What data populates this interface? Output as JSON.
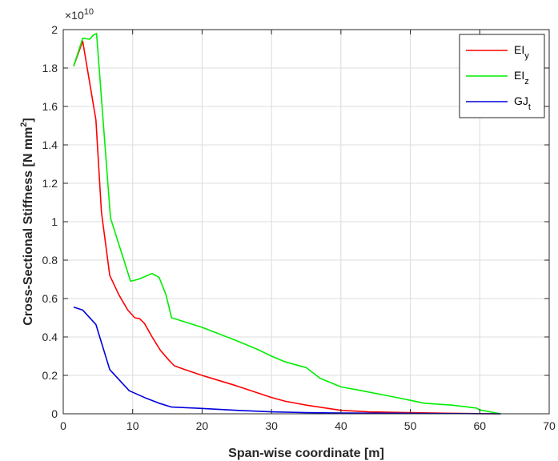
{
  "chart_data": {
    "type": "line",
    "xlabel": "Span-wise coordinate [m]",
    "ylabel_base": "Cross-Sectional Stiffness [N mm",
    "ylabel_sup": "2",
    "ylabel_end": "]",
    "exponent_base": "×10",
    "exponent_power": "10",
    "xlim": [
      0,
      70
    ],
    "ylim": [
      0,
      2
    ],
    "xticks": [
      0,
      10,
      20,
      30,
      40,
      50,
      60,
      70
    ],
    "yticks": [
      0,
      0.2,
      0.4,
      0.6,
      0.8,
      1,
      1.2,
      1.4,
      1.6,
      1.8,
      2
    ],
    "xtick_labels": [
      "0",
      "10",
      "20",
      "30",
      "40",
      "50",
      "60",
      "70"
    ],
    "ytick_labels": [
      "0",
      "0.2",
      "0.4",
      "0.6",
      "0.8",
      "1",
      "1.2",
      "1.4",
      "1.6",
      "1.8",
      "2"
    ],
    "grid": true,
    "legend_position": "top-right",
    "series": [
      {
        "name_base": "EI",
        "name_sub": "y",
        "color": "#ff0000",
        "x": [
          1.5,
          2.8,
          4.7,
          5.5,
          6.7,
          8.0,
          9.3,
          10.3,
          11.0,
          11.7,
          12.8,
          14.0,
          15.2,
          16.0,
          17.5,
          20.0,
          25.0,
          30.0,
          32.0,
          35.0,
          40.0,
          44.0,
          50.0,
          55.0,
          60.0,
          63.0
        ],
        "y": [
          1.81,
          1.94,
          1.53,
          1.05,
          0.72,
          0.62,
          0.54,
          0.5,
          0.495,
          0.47,
          0.4,
          0.33,
          0.28,
          0.25,
          0.23,
          0.2,
          0.145,
          0.085,
          0.065,
          0.045,
          0.018,
          0.01,
          0.006,
          0.003,
          0.001,
          0.0
        ]
      },
      {
        "name_base": "EI",
        "name_sub": "z",
        "color": "#00ee00",
        "x": [
          1.5,
          2.8,
          3.8,
          4.3,
          4.8,
          6.8,
          9.7,
          10.8,
          12.8,
          13.8,
          14.8,
          15.6,
          20.0,
          25.0,
          28.0,
          30.0,
          32.0,
          35.0,
          37.0,
          40.0,
          43.0,
          48.0,
          50.0,
          52.0,
          56.0,
          59.5,
          60.0,
          63.0
        ],
        "y": [
          1.81,
          1.955,
          1.95,
          1.97,
          1.98,
          1.02,
          0.69,
          0.7,
          0.73,
          0.71,
          0.62,
          0.5,
          0.45,
          0.38,
          0.335,
          0.3,
          0.27,
          0.24,
          0.185,
          0.14,
          0.12,
          0.085,
          0.07,
          0.055,
          0.045,
          0.03,
          0.02,
          0.0
        ]
      },
      {
        "name_base": "GJ",
        "name_sub": "t",
        "color": "#0000dd",
        "x": [
          1.5,
          2.8,
          4.7,
          6.7,
          9.5,
          12.0,
          13.8,
          15.6,
          20.0,
          25.0,
          30.0,
          35.0,
          40.0,
          50.0,
          63.0
        ],
        "y": [
          0.555,
          0.54,
          0.465,
          0.23,
          0.12,
          0.08,
          0.055,
          0.035,
          0.028,
          0.018,
          0.01,
          0.006,
          0.004,
          0.002,
          0.0
        ]
      }
    ]
  }
}
